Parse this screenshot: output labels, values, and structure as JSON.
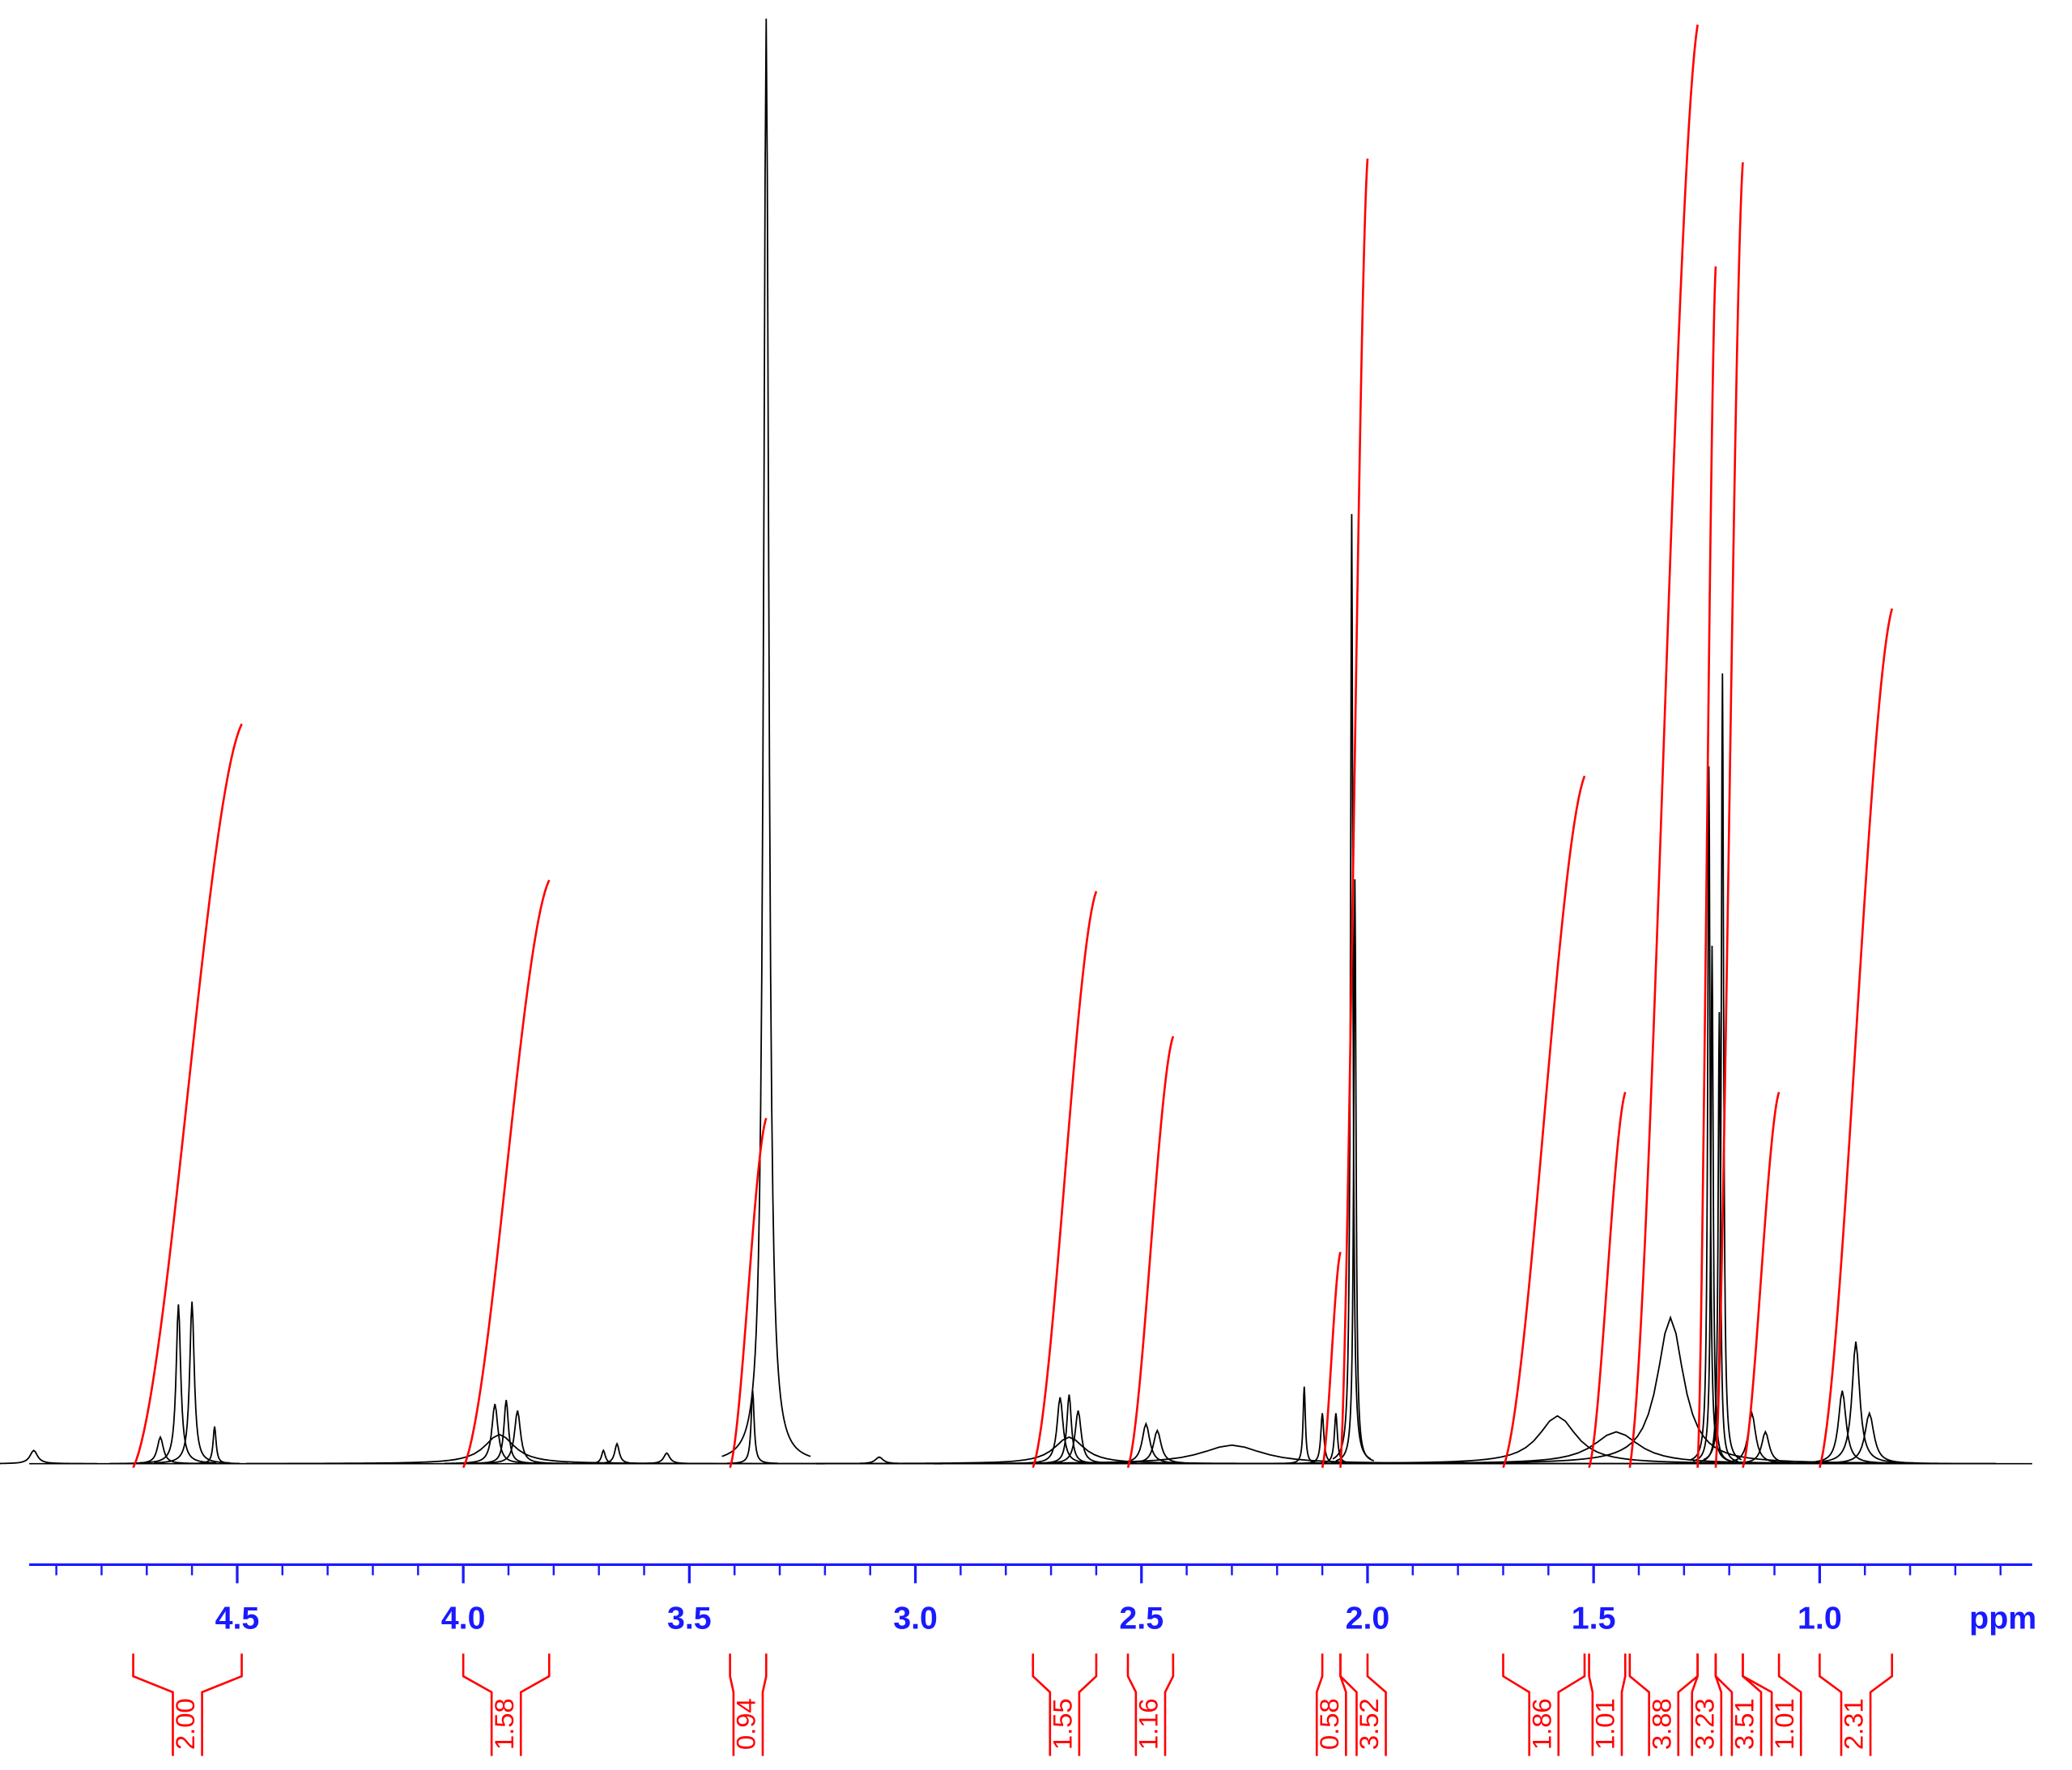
{
  "chart_data": {
    "type": "nmr",
    "x_label": "ppm",
    "xlim": [
      4.96,
      0.53
    ],
    "ylim": [
      0,
      1090
    ],
    "xticks": [
      4.5,
      {
        "value": 4,
        "label": "4.0"
      },
      3.5,
      {
        "value": 3,
        "label": "3.0"
      },
      2.5,
      {
        "value": 2,
        "label": "2.0"
      },
      1.5,
      {
        "value": 1,
        "label": "1.0"
      }
    ],
    "xticks_minor": [
      4.9,
      4.8,
      4.7,
      4.6,
      4.4,
      4.3,
      4.2,
      4.1,
      3.9,
      3.8,
      3.7,
      3.6,
      3.4,
      3.3,
      3.2,
      3.1,
      2.9,
      2.8,
      2.7,
      2.6,
      2.4,
      2.3,
      2.2,
      2.1,
      1.9,
      1.8,
      1.7,
      1.6,
      1.4,
      1.3,
      1.2,
      1.1,
      0.9,
      0.8,
      0.7,
      0.6
    ],
    "axis_color": "#1a1aff",
    "spectrum_color": "#000000",
    "peaks": {
      "x": [
        4.95,
        4.67,
        4.63,
        4.6,
        4.55,
        3.93,
        3.905,
        3.88,
        3.92,
        3.69,
        3.66,
        3.55,
        3.33,
        3.36,
        3.08,
        2.68,
        2.66,
        2.64,
        2.66,
        2.49,
        2.465,
        2.3,
        2.14,
        2.1,
        2.07,
        2.035,
        2.028,
        1.58,
        1.45,
        1.33,
        1.245,
        1.238,
        1.215,
        1.222,
        1.15,
        1.12,
        0.95,
        0.92,
        0.89
      ],
      "values": [
        10,
        20,
        120,
        122,
        28,
        45,
        48,
        40,
        22,
        10,
        15,
        8,
        1088,
        55,
        5,
        50,
        52,
        40,
        20,
        30,
        25,
        14,
        58,
        38,
        38,
        715,
        440,
        36,
        24,
        110,
        525,
        390,
        595,
        340,
        38,
        24,
        55,
        92,
        38
      ],
      "widths": [
        0.01,
        0.008,
        0.006,
        0.006,
        0.004,
        0.008,
        0.006,
        0.008,
        0.04,
        0.005,
        0.006,
        0.008,
        0.007,
        0.004,
        0.01,
        0.008,
        0.006,
        0.008,
        0.04,
        0.01,
        0.01,
        0.08,
        0.003,
        0.004,
        0.004,
        0.003,
        0.003,
        0.05,
        0.06,
        0.035,
        0.003,
        0.003,
        0.003,
        0.003,
        0.01,
        0.01,
        0.01,
        0.01,
        0.012
      ]
    },
    "integrals": {
      "color": "#ff0000",
      "starts": [
        4.73,
        4.0,
        3.41,
        2.74,
        2.53,
        2.1,
        2.06,
        1.7,
        1.51,
        1.42,
        1.27,
        1.23,
        1.17,
        1.0
      ],
      "ends": [
        4.49,
        3.81,
        3.33,
        2.6,
        2.43,
        2.06,
        2.0,
        1.52,
        1.43,
        1.27,
        1.23,
        1.17,
        1.09,
        0.84
      ],
      "values": [
        2,
        1.58,
        0.94,
        1.55,
        1.16,
        0.58,
        3.52,
        1.86,
        1.01,
        3.88,
        3.23,
        3.51,
        1.01,
        2.31
      ],
      "value_labels": [
        "2.00",
        "1.58",
        "0.94",
        "1.55",
        "1.16",
        "0.58",
        "3.52",
        "1.86",
        "1.01",
        "3.88",
        "3.23",
        "3.51",
        "1.01",
        "2.31"
      ]
    }
  }
}
